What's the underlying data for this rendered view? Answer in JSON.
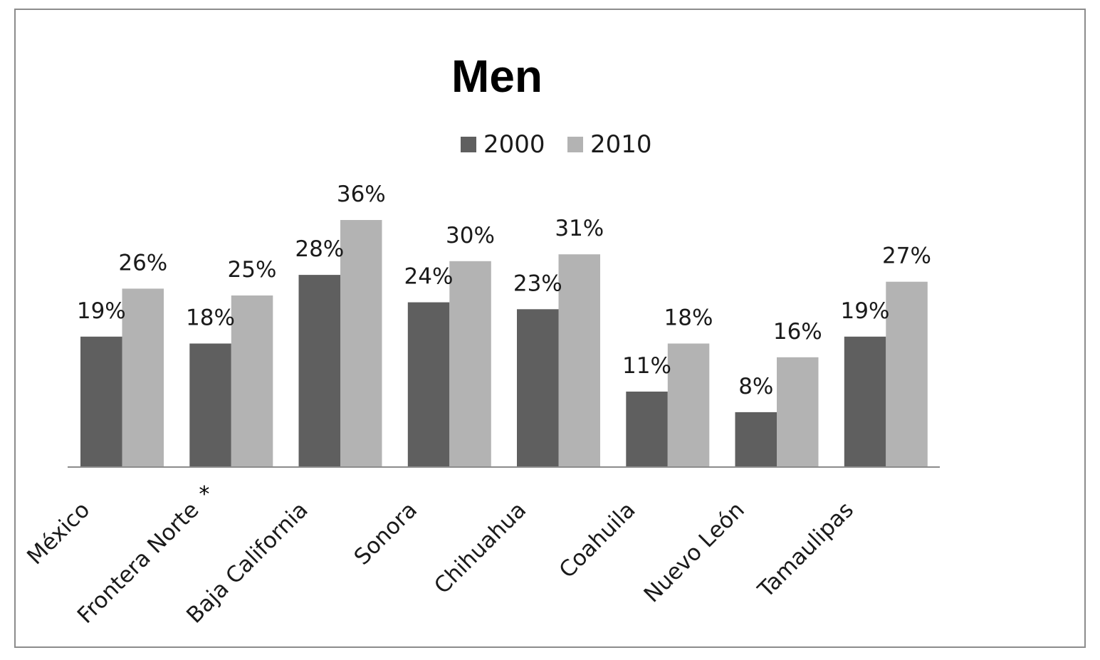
{
  "chart_data": {
    "type": "bar",
    "title": "Men",
    "categories": [
      "México",
      "Frontera Norte",
      "Baja California",
      "Sonora",
      "Chihuahua",
      "Coahuila",
      "Nuevo León",
      "Tamaulipas"
    ],
    "category_footnote": {
      "category": "Frontera Norte",
      "marker": "*"
    },
    "series": [
      {
        "name": "2000",
        "values": [
          19,
          18,
          28,
          24,
          23,
          11,
          8,
          19
        ],
        "labels": [
          "19%",
          "18%",
          "28%",
          "24%",
          "23%",
          "11%",
          "8%",
          "19%"
        ],
        "color": "#5f5f5f"
      },
      {
        "name": "2010",
        "values": [
          26,
          25,
          36,
          30,
          31,
          18,
          16,
          27
        ],
        "labels": [
          "26%",
          "25%",
          "36%",
          "30%",
          "31%",
          "18%",
          "16%",
          "27%"
        ],
        "color": "#b3b3b3"
      }
    ],
    "value_unit": "%",
    "ylim": [
      0,
      40
    ],
    "y_axis_visible": false,
    "grid": false,
    "legend_position": "top-center",
    "xlabel": "",
    "ylabel": ""
  }
}
